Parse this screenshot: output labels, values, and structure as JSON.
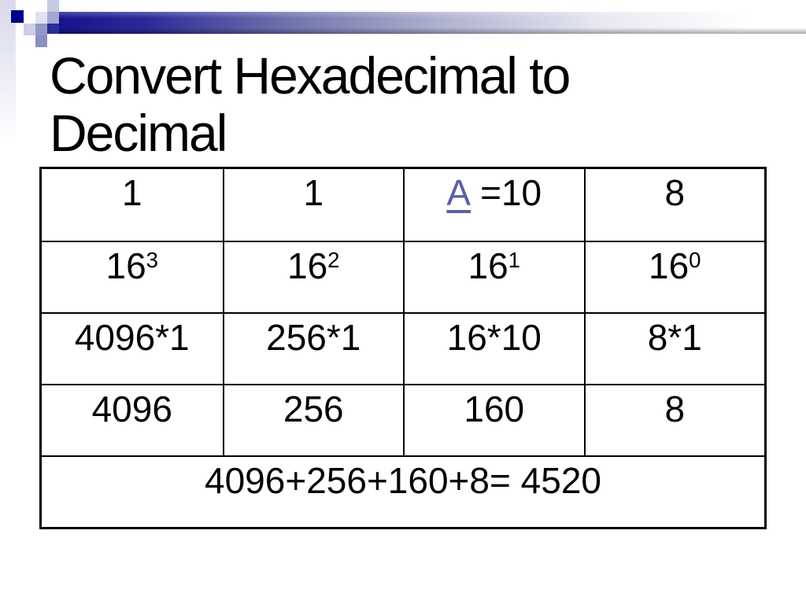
{
  "slide": {
    "title": {
      "line1": "Convert Hexadecimal to",
      "line2": "Decimal"
    }
  },
  "table": {
    "digits": {
      "c0": "1",
      "c1": "1",
      "hex_letter": "A",
      "hex_value": "=10",
      "c3": "8"
    },
    "powers": {
      "base": "16",
      "exponents": [
        "3",
        "2",
        "1",
        "0"
      ]
    },
    "products": {
      "c0": "4096*1",
      "c1": "256*1",
      "c2": "16*10",
      "c3": "8*1"
    },
    "values": {
      "c0": "4096",
      "c1": "256",
      "c2": "160",
      "c3": "8"
    },
    "sum": "4096+256+160+8= 4520"
  },
  "colors": {
    "accent_navy": "#00008b",
    "bar_gradient_start": "#14148c",
    "link": "#5b5fa8",
    "text": "#000000",
    "border": "#000000",
    "background": "#ffffff"
  }
}
